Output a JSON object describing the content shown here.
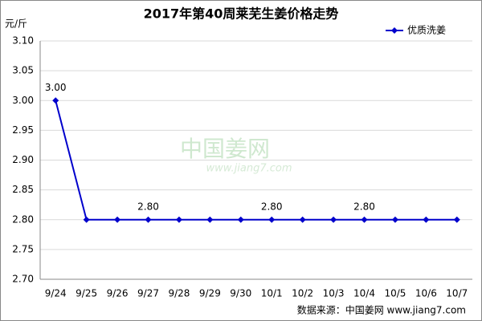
{
  "chart_data": {
    "type": "line",
    "title": "2017年第40周莱芜生姜价格走势",
    "y_label": "元/斤",
    "categories": [
      "9/24",
      "9/25",
      "9/26",
      "9/27",
      "9/28",
      "9/29",
      "9/30",
      "10/1",
      "10/2",
      "10/3",
      "10/4",
      "10/5",
      "10/6",
      "10/7"
    ],
    "series": [
      {
        "name": "优质洗姜",
        "color": "#0000cc",
        "values": [
          3.0,
          2.8,
          2.8,
          2.8,
          2.8,
          2.8,
          2.8,
          2.8,
          2.8,
          2.8,
          2.8,
          2.8,
          2.8,
          2.8
        ],
        "value_labels": [
          "3.00",
          null,
          null,
          "2.80",
          null,
          null,
          null,
          "2.80",
          null,
          null,
          "2.80",
          null,
          null,
          null
        ]
      }
    ],
    "ylim": [
      2.7,
      3.1
    ],
    "yticks": [
      {
        "value": 2.7,
        "label": "2.70"
      },
      2.75,
      {
        "value": 2.8,
        "label": "2.80"
      },
      2.85,
      {
        "value": 2.9,
        "label": "2.90"
      },
      2.95,
      {
        "value": 3.0,
        "label": "3.00"
      },
      3.05,
      {
        "value": 3.1,
        "label": "3.10"
      }
    ],
    "grid": true,
    "legend": "top-right",
    "source": "数据来源：中国姜网 www.jiang7.com",
    "watermark": [
      "中国姜网",
      "www.jiang7.com"
    ]
  }
}
